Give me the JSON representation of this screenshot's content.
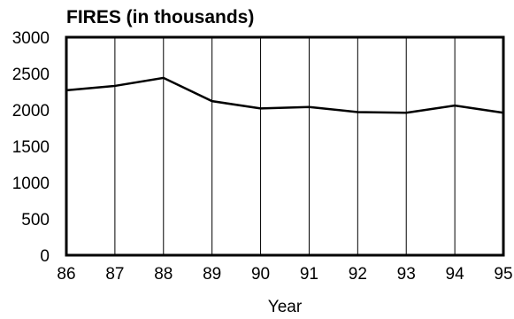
{
  "chart_data": {
    "type": "line",
    "title": "FIRES (in thousands)",
    "xlabel": "Year",
    "ylabel": "",
    "x": [
      "86",
      "87",
      "88",
      "89",
      "90",
      "91",
      "92",
      "93",
      "94",
      "95"
    ],
    "series": [
      {
        "values": [
          2270,
          2330,
          2440,
          2120,
          2020,
          2040,
          1970,
          1960,
          2060,
          1960
        ]
      }
    ],
    "yticks": [
      "0",
      "500",
      "1000",
      "1500",
      "2000",
      "2500",
      "3000"
    ],
    "ylim": [
      0,
      3000
    ],
    "grid": "vertical",
    "legend": "none",
    "line_color": "#000000"
  }
}
